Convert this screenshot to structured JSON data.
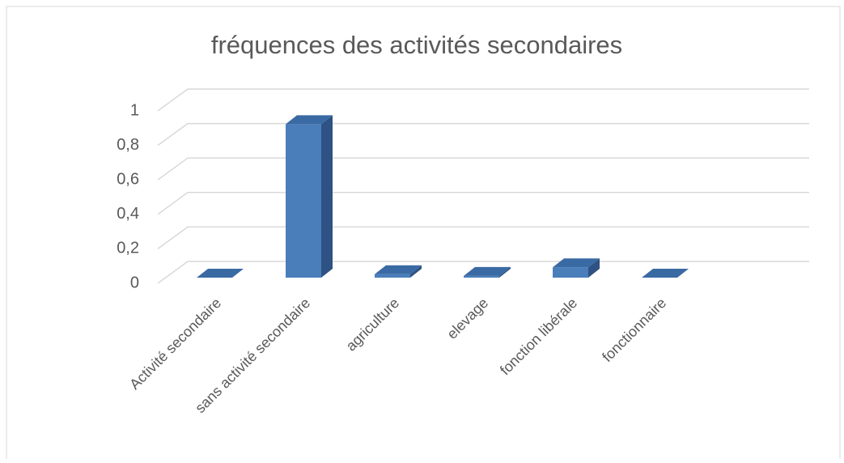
{
  "chart_data": {
    "type": "bar3d",
    "title": "fréquences des activités secondaires",
    "categories": [
      "Activité secondaire",
      "sans activité secondaire",
      "agriculture",
      "elevage",
      "fonction libérale",
      "fonctionnaire"
    ],
    "values": [
      0,
      0.89,
      0.02,
      0.01,
      0.06,
      0
    ],
    "color": "#4a7ebb",
    "ylim": [
      0,
      1
    ],
    "yticks": [
      0,
      {
        "value": 0.2,
        "label": "0,2"
      },
      {
        "value": 0.4,
        "label": "0,4"
      },
      {
        "value": 0.6,
        "label": "0,6"
      },
      {
        "value": 0.8,
        "label": "0,8"
      },
      1
    ],
    "grid": true
  }
}
